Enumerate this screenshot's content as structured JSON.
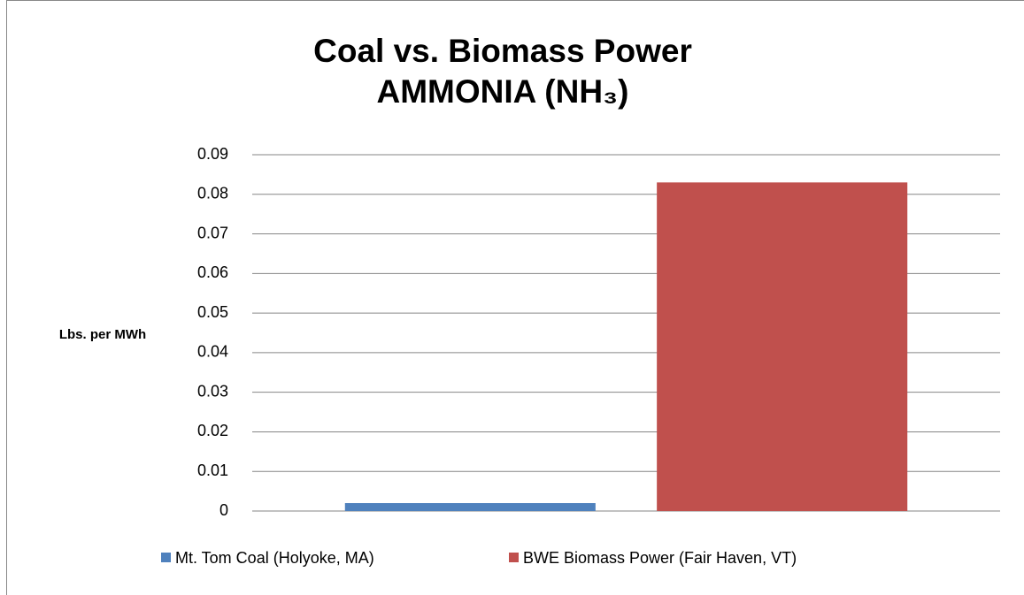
{
  "chart_data": {
    "type": "bar",
    "title": "Coal vs. Biomass Power",
    "subtitle": "AMMONIA (NH₃)",
    "y_label": "Lbs. per MWh",
    "categories": [
      null
    ],
    "series": [
      {
        "name": "Mt. Tom Coal (Holyoke, MA)",
        "color": "#4f81bd",
        "values": [
          0.002
        ]
      },
      {
        "name": "BWE Biomass Power (Fair Haven, VT)",
        "color": "#c0504d",
        "values": [
          0.083
        ]
      }
    ],
    "ylim": [
      0,
      0.09
    ],
    "yticks": [
      0,
      0.01,
      0.02,
      0.03,
      0.04,
      0.05,
      0.06,
      0.07,
      0.08,
      0.09
    ],
    "grid": true,
    "legend": "bottom"
  }
}
